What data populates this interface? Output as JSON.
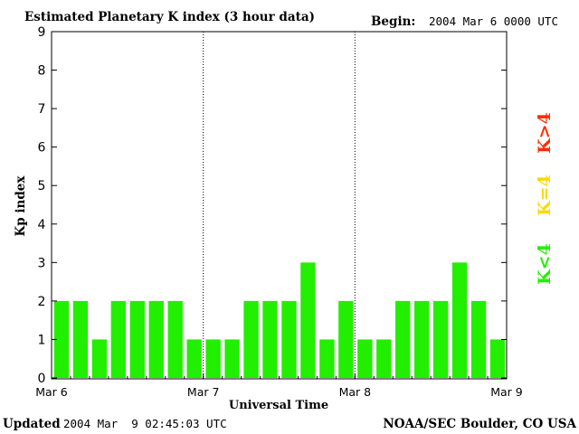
{
  "header": {
    "title": "Estimated Planetary K index (3 hour data)",
    "begin_label": "Begin:",
    "begin_value": "2004 Mar 6 0000 UTC"
  },
  "footer": {
    "updated_label": "Updated",
    "updated_value": "2004 Mar  9 02:45:03 UTC",
    "credit": "NOAA/SEC Boulder, CO USA"
  },
  "legend": [
    {
      "label": "K>4",
      "color": "#ff2a00"
    },
    {
      "label": "K=4",
      "color": "#ffd800"
    },
    {
      "label": "K<4",
      "color": "#22ee00"
    }
  ],
  "chart_data": {
    "type": "bar",
    "title": "Estimated Planetary K index (3 hour data)",
    "xlabel": "Universal Time",
    "ylabel": "Kp index",
    "ylim": [
      0,
      9
    ],
    "yticks": [
      0,
      1,
      2,
      3,
      4,
      5,
      6,
      7,
      8,
      9
    ],
    "day_labels": [
      "Mar 6",
      "Mar 7",
      "Mar 8",
      "Mar 9"
    ],
    "bins_per_day": 8,
    "values": [
      2,
      2,
      1,
      2,
      2,
      2,
      2,
      1,
      1,
      1,
      2,
      2,
      2,
      3,
      1,
      2,
      1,
      1,
      2,
      2,
      2,
      3,
      2,
      1
    ],
    "bar_color": "#22ee00",
    "day_separators": "dotted vertical lines",
    "grid": false
  }
}
